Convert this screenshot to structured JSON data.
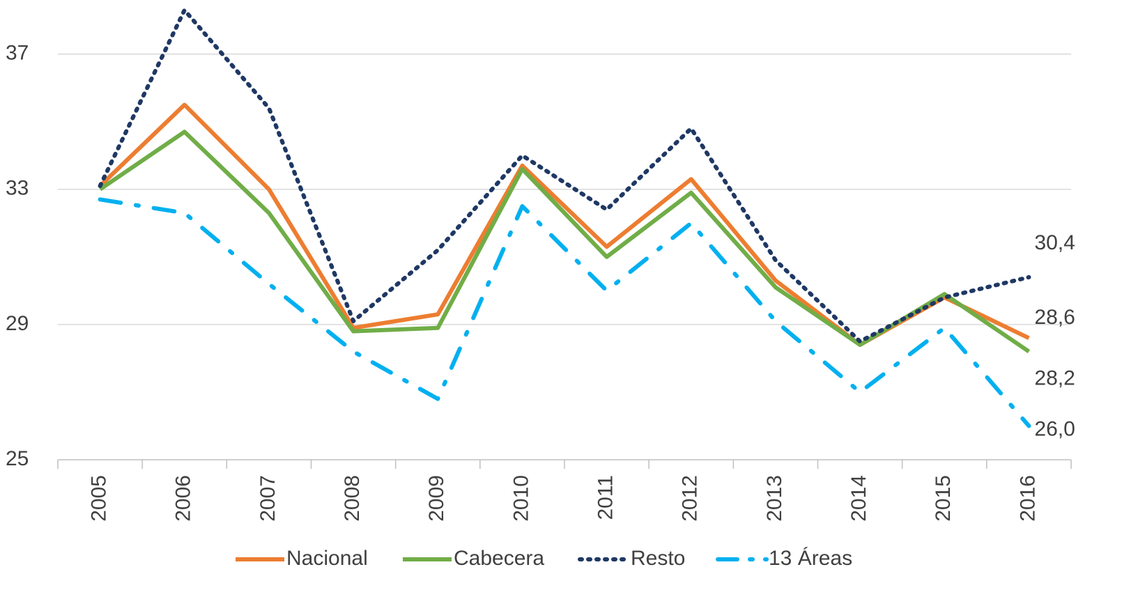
{
  "chart_data": {
    "type": "line",
    "categories": [
      "2005",
      "2006",
      "2007",
      "2008",
      "2009",
      "2010",
      "2011",
      "2012",
      "2013",
      "2014",
      "2015",
      "2016"
    ],
    "series": [
      {
        "name": "Nacional",
        "color": "#ED7D31",
        "style": "solid",
        "values": [
          33.1,
          35.5,
          33.0,
          28.9,
          29.3,
          33.7,
          31.3,
          33.3,
          30.3,
          28.4,
          29.8,
          28.6
        ],
        "value_labels": [
          null,
          null,
          null,
          null,
          null,
          null,
          null,
          null,
          null,
          null,
          null,
          "28,6"
        ]
      },
      {
        "name": "Cabecera",
        "color": "#70AD47",
        "style": "solid",
        "values": [
          33.0,
          34.7,
          32.3,
          28.8,
          28.9,
          33.6,
          31.0,
          32.9,
          30.1,
          28.4,
          29.9,
          28.2
        ],
        "value_labels": [
          null,
          null,
          null,
          null,
          null,
          null,
          null,
          null,
          null,
          null,
          null,
          "28,2"
        ]
      },
      {
        "name": "Resto",
        "color": "#1F3864",
        "style": "dotted",
        "values": [
          33.1,
          38.3,
          35.4,
          29.1,
          31.2,
          34.0,
          32.4,
          34.8,
          30.9,
          28.5,
          29.8,
          30.4
        ],
        "value_labels": [
          null,
          null,
          null,
          null,
          null,
          null,
          null,
          null,
          null,
          null,
          null,
          "30,4"
        ]
      },
      {
        "name": "13 Áreas",
        "color": "#00B0F0",
        "style": "dashdot",
        "values": [
          32.7,
          32.3,
          30.2,
          28.2,
          26.8,
          32.5,
          30.0,
          32.0,
          29.1,
          27.0,
          28.9,
          26.0
        ],
        "value_labels": [
          null,
          null,
          null,
          null,
          null,
          null,
          null,
          null,
          null,
          null,
          null,
          "26,0"
        ]
      }
    ],
    "ylim": [
      25,
      38.6
    ],
    "yticks": [
      25,
      29,
      33,
      37
    ],
    "grid": true,
    "legend": "bottom"
  }
}
